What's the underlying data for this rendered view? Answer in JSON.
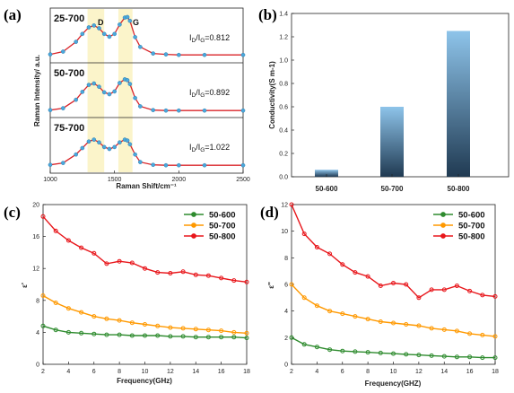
{
  "chart_data": [
    {
      "panel": "(a)",
      "type": "line",
      "xlabel": "Raman Shift/cm⁻¹",
      "ylabel": "Raman Intensity/ a.u.",
      "xlim": [
        1000,
        2500
      ],
      "xticks": [
        "1000",
        "1500",
        "2000",
        "2500"
      ],
      "band_labels": [
        "D",
        "G"
      ],
      "band_ranges": [
        [
          1290,
          1420
        ],
        [
          1530,
          1640
        ]
      ],
      "rows": [
        {
          "name": "25-700",
          "ratio_label": "I",
          "ratio_sub1": "D",
          "ratio_mid": "/I",
          "ratio_sub2": "G",
          "ratio_value": "=0.812",
          "x": [
            1000,
            1100,
            1200,
            1250,
            1300,
            1340,
            1380,
            1420,
            1460,
            1500,
            1540,
            1580,
            1600,
            1620,
            1660,
            1700,
            1800,
            1900,
            2000,
            2200,
            2500
          ],
          "y": [
            0.18,
            0.24,
            0.45,
            0.62,
            0.76,
            0.8,
            0.74,
            0.62,
            0.56,
            0.62,
            0.82,
            0.97,
            0.98,
            0.9,
            0.55,
            0.34,
            0.2,
            0.18,
            0.17,
            0.17,
            0.17
          ]
        },
        {
          "name": "50-700",
          "ratio_label": "I",
          "ratio_sub1": "D",
          "ratio_mid": "/I",
          "ratio_sub2": "G",
          "ratio_value": "=0.892",
          "x": [
            1000,
            1100,
            1200,
            1250,
            1300,
            1340,
            1380,
            1420,
            1460,
            1500,
            1540,
            1580,
            1600,
            1620,
            1660,
            1700,
            1800,
            1900,
            2000,
            2200,
            2500
          ],
          "y": [
            0.16,
            0.2,
            0.38,
            0.55,
            0.7,
            0.73,
            0.66,
            0.54,
            0.5,
            0.56,
            0.74,
            0.82,
            0.8,
            0.72,
            0.42,
            0.24,
            0.16,
            0.15,
            0.15,
            0.15,
            0.15
          ]
        },
        {
          "name": "75-700",
          "ratio_label": "I",
          "ratio_sub1": "D",
          "ratio_mid": "/I",
          "ratio_sub2": "G",
          "ratio_value": "=1.022",
          "x": [
            1000,
            1100,
            1200,
            1250,
            1300,
            1340,
            1380,
            1420,
            1460,
            1500,
            1540,
            1580,
            1600,
            1620,
            1660,
            1700,
            1800,
            1900,
            2000,
            2200,
            2500
          ],
          "y": [
            0.16,
            0.2,
            0.38,
            0.52,
            0.66,
            0.7,
            0.64,
            0.54,
            0.5,
            0.54,
            0.64,
            0.7,
            0.68,
            0.6,
            0.38,
            0.22,
            0.16,
            0.15,
            0.15,
            0.15,
            0.15
          ]
        }
      ]
    },
    {
      "panel": "(b)",
      "type": "bar",
      "ylabel": "Conductivity(S m-1)",
      "ylim": [
        0,
        1.4
      ],
      "yticks": [
        "0.0",
        "0.2",
        "0.4",
        "0.6",
        "0.8",
        "1.0",
        "1.2",
        "1.4"
      ],
      "categories": [
        "50-600",
        "50-700",
        "50-800"
      ],
      "values": [
        0.06,
        0.6,
        1.25
      ]
    },
    {
      "panel": "(c)",
      "type": "line",
      "xlabel": "Frequency(GHz)",
      "ylabel": "ε'",
      "xlim": [
        2,
        18
      ],
      "ylim": [
        0,
        20
      ],
      "xticks": [
        "2",
        "4",
        "6",
        "8",
        "10",
        "12",
        "14",
        "16",
        "18"
      ],
      "yticks": [
        "0",
        "4",
        "8",
        "12",
        "16",
        "20"
      ],
      "x": [
        2,
        3,
        4,
        5,
        6,
        7,
        8,
        9,
        10,
        11,
        12,
        13,
        14,
        15,
        16,
        17,
        18
      ],
      "series": [
        {
          "name": "50-600",
          "color": "#2e8b2e",
          "values": [
            4.8,
            4.3,
            4.0,
            3.9,
            3.8,
            3.7,
            3.7,
            3.6,
            3.6,
            3.6,
            3.5,
            3.5,
            3.4,
            3.4,
            3.4,
            3.4,
            3.3
          ]
        },
        {
          "name": "50-700",
          "color": "#ff9900",
          "values": [
            8.6,
            7.7,
            7.0,
            6.5,
            6.0,
            5.7,
            5.5,
            5.2,
            5.0,
            4.8,
            4.6,
            4.5,
            4.4,
            4.3,
            4.2,
            4.0,
            3.9
          ]
        },
        {
          "name": "50-800",
          "color": "#e8161b",
          "values": [
            18.5,
            16.7,
            15.5,
            14.6,
            13.9,
            12.6,
            12.9,
            12.7,
            12.0,
            11.5,
            11.4,
            11.6,
            11.2,
            11.1,
            10.8,
            10.5,
            10.3
          ]
        }
      ]
    },
    {
      "panel": "(d)",
      "type": "line",
      "xlabel": "Frequency(GHZ)",
      "ylabel": "ε''",
      "xlim": [
        2,
        18
      ],
      "ylim": [
        0,
        12
      ],
      "xticks": [
        "2",
        "4",
        "6",
        "8",
        "10",
        "12",
        "14",
        "16",
        "18"
      ],
      "yticks": [
        "0",
        "2",
        "4",
        "6",
        "8",
        "10",
        "12"
      ],
      "x": [
        2,
        3,
        4,
        5,
        6,
        7,
        8,
        9,
        10,
        11,
        12,
        13,
        14,
        15,
        16,
        17,
        18
      ],
      "series": [
        {
          "name": "50-600",
          "color": "#2e8b2e",
          "values": [
            2.0,
            1.5,
            1.3,
            1.1,
            1.0,
            0.95,
            0.9,
            0.85,
            0.8,
            0.75,
            0.7,
            0.65,
            0.6,
            0.55,
            0.55,
            0.5,
            0.5
          ]
        },
        {
          "name": "50-700",
          "color": "#ff9900",
          "values": [
            6.0,
            5.0,
            4.4,
            4.0,
            3.8,
            3.6,
            3.4,
            3.2,
            3.1,
            3.0,
            2.9,
            2.7,
            2.6,
            2.5,
            2.3,
            2.2,
            2.1
          ]
        },
        {
          "name": "50-800",
          "color": "#e8161b",
          "values": [
            12.0,
            9.8,
            8.8,
            8.3,
            7.5,
            6.9,
            6.6,
            5.9,
            6.1,
            6.0,
            5.0,
            5.6,
            5.6,
            5.9,
            5.5,
            5.2,
            5.1
          ]
        }
      ]
    }
  ]
}
